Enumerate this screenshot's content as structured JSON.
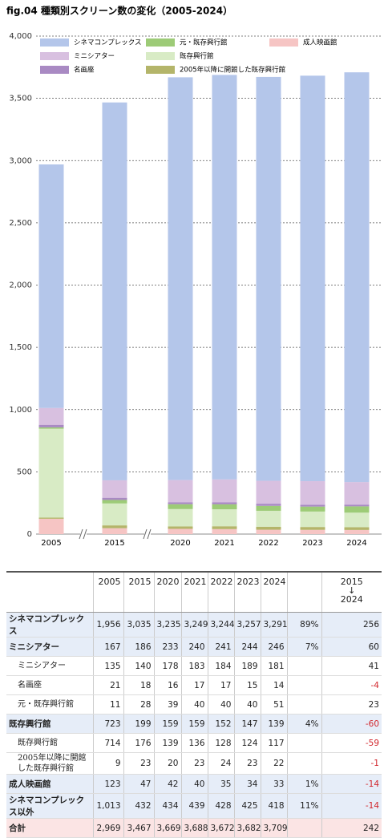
{
  "chart_data": {
    "type": "bar",
    "stacked": true,
    "title": "fig.04 種類別スクリーン数の変化（2005-2024）",
    "categories": [
      "2005",
      "2015",
      "2020",
      "2021",
      "2022",
      "2023",
      "2024"
    ],
    "series": [
      {
        "name": "成人映画館",
        "color": "#f6c5c4",
        "values": [
          123,
          47,
          42,
          40,
          35,
          34,
          33
        ]
      },
      {
        "name": "2005年以降に開館した既存興行館",
        "color": "#b4b56a",
        "values": [
          9,
          23,
          20,
          23,
          24,
          23,
          22
        ]
      },
      {
        "name": "既存興行館",
        "color": "#d8ebc5",
        "values": [
          714,
          176,
          139,
          136,
          128,
          124,
          117
        ]
      },
      {
        "name": "元・既存興行館",
        "color": "#9dcb77",
        "values": [
          11,
          28,
          39,
          40,
          40,
          40,
          51
        ]
      },
      {
        "name": "名画座",
        "color": "#a98ac3",
        "values": [
          21,
          18,
          16,
          17,
          17,
          15,
          14
        ]
      },
      {
        "name": "ミニシアター",
        "color": "#d8c0e0",
        "values": [
          135,
          140,
          178,
          183,
          184,
          189,
          181
        ]
      },
      {
        "name": "シネマコンプレックス",
        "color": "#b4c6ea",
        "values": [
          1956,
          3035,
          3235,
          3249,
          3244,
          3257,
          3291
        ]
      }
    ],
    "ylim": [
      0,
      4000
    ],
    "yticks": [
      0,
      {
        "value": 500,
        "label": "500"
      },
      {
        "value": 1000,
        "label": "1,000"
      },
      {
        "value": 1500,
        "label": "1,500"
      },
      {
        "value": 2000,
        "label": "2,000"
      },
      {
        "value": 2500,
        "label": "2,500"
      },
      {
        "value": 3000,
        "label": "3,000"
      },
      {
        "value": 3500,
        "label": "3,500"
      },
      {
        "value": 4000,
        "label": "4,000"
      }
    ],
    "grid": true
  },
  "table": {
    "years": [
      "2005",
      "2015",
      "2020",
      "2021",
      "2022",
      "2023",
      "2024"
    ],
    "change_from": "2015",
    "change_to": "2024",
    "rows": [
      {
        "style": "main",
        "label": "シネマコンプレックス",
        "cells": [
          "1,956",
          "3,035",
          "3,235",
          "3,249",
          "3,244",
          "3,257",
          "3,291",
          "89%",
          "256"
        ]
      },
      {
        "style": "main",
        "label": "ミニシアター",
        "cells": [
          "167",
          "186",
          "233",
          "240",
          "241",
          "244",
          "246",
          "7%",
          "60"
        ]
      },
      {
        "style": "sub",
        "label": "ミニシアター",
        "cells": [
          "135",
          "140",
          "178",
          "183",
          "184",
          "189",
          "181",
          null,
          "41"
        ]
      },
      {
        "style": "sub",
        "label": "名画座",
        "cells": [
          "21",
          "18",
          "16",
          "17",
          "17",
          "15",
          "14",
          null,
          "-4"
        ]
      },
      {
        "style": "sub",
        "label": "元・既存興行館",
        "cells": [
          "11",
          "28",
          "39",
          "40",
          "40",
          "40",
          "51",
          null,
          "23"
        ]
      },
      {
        "style": "main",
        "label": "既存興行館",
        "cells": [
          "723",
          "199",
          "159",
          "159",
          "152",
          "147",
          "139",
          "4%",
          "-60"
        ]
      },
      {
        "style": "sub",
        "label": "既存興行館",
        "cells": [
          "714",
          "176",
          "139",
          "136",
          "128",
          "124",
          "117",
          null,
          "-59"
        ]
      },
      {
        "style": "sub",
        "label": "2005年以降に開館した既存興行館",
        "cells": [
          "9",
          "23",
          "20",
          "23",
          "24",
          "23",
          "22",
          null,
          "-1"
        ]
      },
      {
        "style": "main",
        "label": "成人映画館",
        "cells": [
          "123",
          "47",
          "42",
          "40",
          "35",
          "34",
          "33",
          "1%",
          "-14"
        ]
      },
      {
        "style": "main",
        "label": "シネマコンプレックス以外",
        "cells": [
          "1,013",
          "432",
          "434",
          "439",
          "428",
          "425",
          "418",
          "11%",
          "-14"
        ]
      },
      {
        "style": "total",
        "label": "合計",
        "cells": [
          "2,969",
          "3,467",
          "3,669",
          "3,688",
          "3,672",
          "3,682",
          "3,709",
          null,
          "242"
        ]
      }
    ]
  }
}
